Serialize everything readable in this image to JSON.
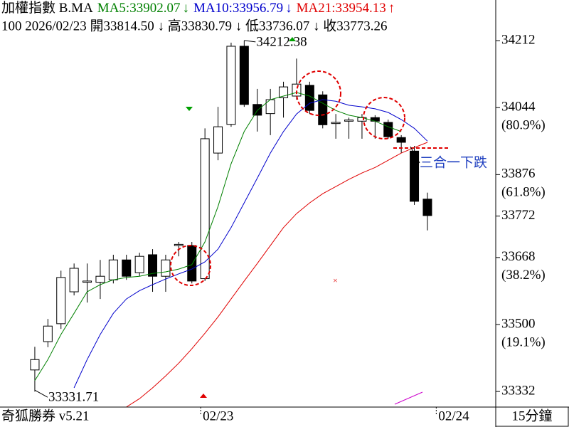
{
  "chart_data": {
    "type": "candlestick",
    "title": "加權指數 B.MA",
    "info": "100 2026/02/23 開33814.50 ↓ 高33830.79 ↓ 低33736.07 ↓ 收33773.26",
    "footer_left": "奇狐勝券 v5.21",
    "period": "15分鐘",
    "x": [
      0,
      1,
      2,
      3,
      4,
      5,
      6,
      7,
      8,
      9,
      10,
      11,
      12,
      13,
      14,
      15,
      16,
      17,
      18,
      19,
      20,
      21,
      22,
      23,
      24,
      25,
      26,
      27,
      28,
      29,
      30
    ],
    "xlim": [
      -2.66,
      35.22
    ],
    "xticks": [
      {
        "value": 13,
        "label": "02/23"
      },
      {
        "value": 31,
        "label": "02/24"
      }
    ],
    "open": [
      33386,
      33457,
      33502,
      33582,
      33606,
      33606,
      33612,
      33662,
      33630,
      33675,
      33621,
      33698,
      33698,
      33615,
      33930,
      34002,
      34198,
      34052,
      34029,
      34069,
      34073,
      34100,
      34076,
      34004,
      34010,
      34010,
      34019,
      34007,
      33969,
      33935,
      33814.5
    ],
    "high": [
      33444,
      33514,
      33635,
      33653,
      33653,
      33662,
      33675,
      33675,
      33680,
      33689,
      33675,
      33707,
      33707,
      33992,
      34046,
      34207,
      34212.38,
      34091,
      34091,
      34109,
      34167,
      34109,
      34085,
      34028,
      34019,
      34028,
      34025,
      34014,
      33975,
      33948,
      33830.79
    ],
    "low": [
      33331.71,
      33443,
      33489,
      33573,
      33555,
      33564,
      33603,
      33612,
      33621,
      33582,
      33582,
      33671,
      33603,
      33609,
      33912,
      33996,
      34046,
      33984,
      33975,
      34019,
      34064,
      34028,
      33992,
      33966,
      33966,
      33966,
      33966,
      33966,
      33930,
      33800,
      33736.07
    ],
    "close": [
      33412,
      33496,
      33618,
      33641,
      33609,
      33621,
      33662,
      33621,
      33671,
      33621,
      33662,
      33701,
      33609,
      33966,
      33996,
      34198,
      34052,
      34025,
      34064,
      34096,
      34103,
      34037,
      34001,
      34007,
      34013,
      34019,
      34010,
      33971,
      33957,
      33809,
      33773.26
    ],
    "up_color": "#ffffff",
    "down_color": "#000000",
    "series": [
      {
        "name": "MA5:33902.07",
        "arrow": "↓",
        "color": "#008000",
        "values": [
          33359,
          33412,
          33475,
          33528,
          33582,
          33600,
          33612,
          33618,
          33621,
          33628,
          33632,
          33639,
          33650,
          33707,
          33796,
          33903,
          33984,
          34037,
          34064,
          34073,
          34082,
          34073,
          34055,
          34037,
          34025,
          34019,
          34010,
          33996,
          33984,
          null,
          null
        ]
      },
      {
        "name": "MA10:33956.79",
        "arrow": "↓",
        "color": "#0000cc",
        "values": [
          null,
          null,
          null,
          33341,
          33412,
          33475,
          33528,
          33564,
          33585,
          33600,
          33614,
          33627,
          33639,
          33657,
          33689,
          33743,
          33805,
          33867,
          33930,
          33984,
          34028,
          34055,
          34064,
          34060,
          34050,
          34046,
          34041,
          34032,
          34014,
          33992,
          33960
        ]
      },
      {
        "name": "MA21:33954.13",
        "arrow": "↑",
        "color": "#e00000",
        "values": [
          null,
          null,
          null,
          null,
          null,
          null,
          null,
          33293,
          33314,
          33341,
          33371,
          33403,
          33439,
          33478,
          33519,
          33564,
          33609,
          33653,
          33698,
          33743,
          33778,
          33805,
          33828,
          33846,
          33864,
          33880,
          33894,
          33912,
          33930,
          33944,
          33957
        ]
      }
    ],
    "ylim": [
      33290,
      34314
    ],
    "yticks": [
      34212,
      34044,
      33876,
      33772,
      33668,
      33500,
      33332
    ],
    "fib_levels": [
      {
        "value": 80.9,
        "label": "(80.9%)"
      },
      {
        "value": 61.8,
        "label": "(61.8%)"
      },
      {
        "value": 38.2,
        "label": "(38.2%)"
      },
      {
        "value": 19.1,
        "label": "(19.1%)"
      }
    ],
    "high_mark": 34212.38,
    "low_mark": 33331.71,
    "note": "三合一下跌"
  }
}
